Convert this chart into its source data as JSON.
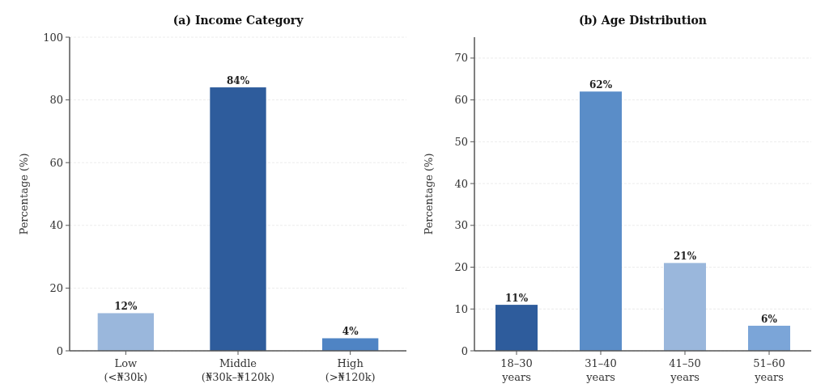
{
  "chart_data": [
    {
      "type": "bar",
      "title": "(a) Income Category",
      "ylabel": "Percentage (%)",
      "categories": [
        "Low\n(<₦30k)",
        "Middle\n(₦30k–₦120k)",
        "High\n(>₦120k)"
      ],
      "values": [
        12,
        84,
        4
      ],
      "colors": [
        "#9ab7dc",
        "#2e5c9c",
        "#4f84c4"
      ],
      "value_labels": [
        "12%",
        "84%",
        "4%"
      ],
      "ylim": [
        0,
        100
      ],
      "yticks": [
        0,
        20,
        40,
        60,
        80,
        100
      ],
      "grid": "y"
    },
    {
      "type": "bar",
      "title": "(b) Age Distribution",
      "ylabel": "Percentage (%)",
      "categories": [
        "18–30\nyears",
        "31–40\nyears",
        "41–50\nyears",
        "51–60\nyears"
      ],
      "values": [
        11,
        62,
        21,
        6
      ],
      "colors": [
        "#2e5c9c",
        "#5a8dc8",
        "#9ab7dc",
        "#7ba5d8"
      ],
      "value_labels": [
        "11%",
        "62%",
        "21%",
        "6%"
      ],
      "ylim": [
        0,
        75
      ],
      "yticks": [
        0,
        10,
        20,
        30,
        40,
        50,
        60,
        70
      ],
      "grid": "y"
    }
  ]
}
